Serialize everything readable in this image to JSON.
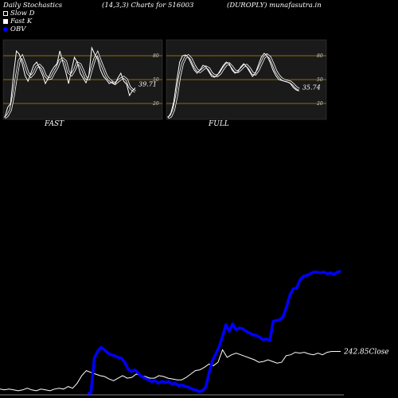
{
  "header": {
    "left": "Daily Stochastics",
    "middle": "(14,3,3) Charts for 516003",
    "right": "(DUROPLY) munafasutra.in"
  },
  "legend": {
    "slow": "Slow  D",
    "fast": "Fast K",
    "obv": "OBV"
  },
  "colors": {
    "background": "#000000",
    "panel": "#1a1a1a",
    "level_line": "#b8860b",
    "stoch_line": "#ffffff",
    "obv_line": "#0000ff",
    "price_line": "#ffffff"
  },
  "chart_data": [
    {
      "type": "line",
      "panel": "FAST",
      "label": "FAST",
      "ylim": [
        0,
        100
      ],
      "levels": [
        20,
        50,
        80
      ],
      "level_labels": [
        "80",
        "50",
        "20"
      ],
      "last_value_label": "39.71",
      "series": [
        {
          "name": "Fast K",
          "values": [
            2,
            15,
            20,
            55,
            86,
            82,
            70,
            55,
            48,
            58,
            68,
            72,
            64,
            56,
            45,
            52,
            60,
            66,
            70,
            86,
            72,
            60,
            45,
            62,
            78,
            72,
            58,
            52,
            46,
            56,
            90,
            82,
            76,
            62,
            54,
            50,
            45,
            47,
            44,
            52,
            58,
            48,
            44,
            30,
            36,
            39.71
          ]
        },
        {
          "name": "Slow  D",
          "values": [
            2,
            5,
            12,
            30,
            54,
            74,
            79,
            69,
            58,
            54,
            58,
            66,
            68,
            64,
            55,
            51,
            52,
            59,
            65,
            74,
            76,
            73,
            59,
            56,
            62,
            71,
            69,
            61,
            52,
            51,
            64,
            76,
            83,
            73,
            64,
            55,
            50,
            47,
            45,
            48,
            51,
            53,
            50,
            41,
            37,
            35.2
          ]
        }
      ]
    },
    {
      "type": "line",
      "panel": "FULL",
      "label": "FULL",
      "ylim": [
        0,
        100
      ],
      "levels": [
        20,
        50,
        80
      ],
      "level_labels": [
        "80",
        "50",
        "20"
      ],
      "last_value_label": "35.74",
      "series": [
        {
          "name": "Fast K",
          "values": [
            2,
            8,
            22,
            48,
            72,
            80,
            81,
            78,
            70,
            62,
            58,
            62,
            68,
            66,
            60,
            54,
            53,
            56,
            62,
            68,
            72,
            70,
            62,
            58,
            60,
            66,
            70,
            66,
            60,
            54,
            58,
            68,
            78,
            83,
            80,
            72,
            62,
            55,
            50,
            49,
            48,
            47,
            45,
            40,
            37,
            35.74
          ]
        },
        {
          "name": "Slow  D",
          "values": [
            2,
            4,
            12,
            30,
            54,
            70,
            78,
            80,
            76,
            68,
            62,
            60,
            63,
            66,
            64,
            58,
            55,
            55,
            58,
            64,
            69,
            70,
            66,
            61,
            60,
            63,
            67,
            68,
            64,
            58,
            57,
            62,
            70,
            78,
            81,
            78,
            70,
            61,
            55,
            51,
            49,
            48,
            47,
            44,
            40,
            37.8
          ]
        }
      ]
    },
    {
      "type": "line",
      "panel": "OBV-Price",
      "close_label": "242.85Close",
      "series": [
        {
          "name": "Close",
          "values": [
            0.05,
            0.04,
            0.05,
            0.04,
            0.03,
            0.04,
            0.06,
            0.04,
            0.03,
            0.05,
            0.04,
            0.03,
            0.05,
            0.06,
            0.05,
            0.08,
            0.06,
            0.12,
            0.21,
            0.27,
            0.25,
            0.23,
            0.21,
            0.2,
            0.17,
            0.15,
            0.18,
            0.21,
            0.18,
            0.19,
            0.23,
            0.21,
            0.2,
            0.18,
            0.18,
            0.21,
            0.2,
            0.18,
            0.17,
            0.16,
            0.16,
            0.19,
            0.23,
            0.27,
            0.28,
            0.31,
            0.35,
            0.33,
            0.37,
            0.52,
            0.43,
            0.46,
            0.48,
            0.46,
            0.44,
            0.42,
            0.4,
            0.37,
            0.38,
            0.4,
            0.38,
            0.36,
            0.37,
            0.45,
            0.46,
            0.49,
            0.48,
            0.49,
            0.47,
            0.46,
            0.48,
            0.46,
            0.49,
            0.5,
            0.5,
            0.5
          ]
        },
        {
          "name": "OBV",
          "values": [
            0.0,
            0.0,
            0.42,
            0.5,
            0.55,
            0.52,
            0.48,
            0.46,
            0.45,
            0.43,
            0.42,
            0.37,
            0.29,
            0.26,
            0.28,
            0.24,
            0.2,
            0.18,
            0.16,
            0.14,
            0.15,
            0.12,
            0.14,
            0.13,
            0.14,
            0.11,
            0.12,
            0.09,
            0.1,
            0.08,
            0.07,
            0.05,
            0.04,
            0.02,
            0.03,
            0.07,
            0.24,
            0.39,
            0.47,
            0.56,
            0.68,
            0.82,
            0.74,
            0.83,
            0.76,
            0.78,
            0.77,
            0.74,
            0.72,
            0.7,
            0.69,
            0.67,
            0.64,
            0.65,
            0.63,
            0.86,
            0.87,
            0.88,
            0.92,
            1.04,
            1.18,
            1.25,
            1.26,
            1.36,
            1.4,
            1.41,
            1.43,
            1.45,
            1.45,
            1.44,
            1.45,
            1.43,
            1.44,
            1.42,
            1.45,
            1.46
          ]
        }
      ]
    }
  ],
  "panel_labels": {
    "fast": "FAST",
    "full": "FULL"
  }
}
